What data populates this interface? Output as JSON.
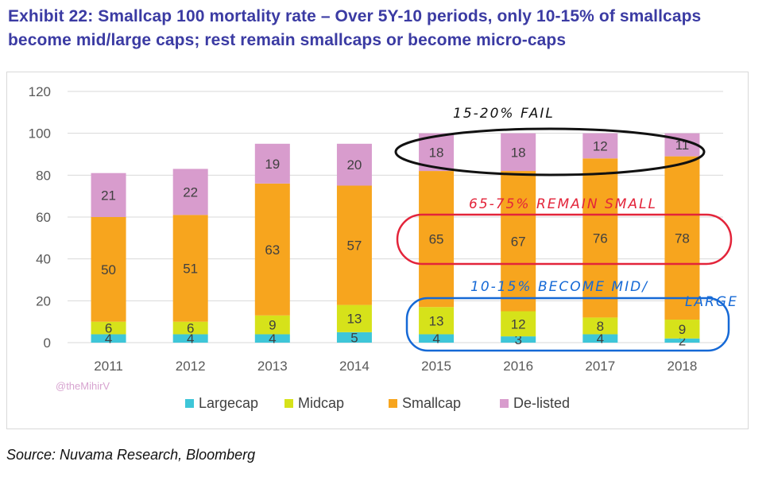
{
  "title": "Exhibit 22: Smallcap 100 mortality rate – Over 5Y-10 periods, only 10-15% of smallcaps become mid/large caps; rest remain smallcaps or become micro-caps",
  "source": "Source: Nuvama Research, Bloomberg",
  "watermark": "@theMihirV",
  "colors": {
    "Largecap": "#3ec6d8",
    "Midcap": "#d6e21a",
    "Smallcap": "#f7a51e",
    "De-listed": "#d89ccd"
  },
  "chart_data": {
    "type": "bar",
    "stacked": true,
    "categories": [
      "2011",
      "2012",
      "2013",
      "2014",
      "2015",
      "2016",
      "2017",
      "2018"
    ],
    "series": [
      {
        "name": "Largecap",
        "values": [
          4,
          4,
          4,
          5,
          4,
          3,
          4,
          2
        ]
      },
      {
        "name": "Midcap",
        "values": [
          6,
          6,
          9,
          13,
          13,
          12,
          8,
          9
        ]
      },
      {
        "name": "Smallcap",
        "values": [
          50,
          51,
          63,
          57,
          65,
          67,
          76,
          78
        ]
      },
      {
        "name": "De-listed",
        "values": [
          21,
          22,
          19,
          20,
          18,
          18,
          12,
          11
        ]
      }
    ],
    "ylim": [
      0,
      120
    ],
    "yticks": [
      "0",
      "20",
      "40",
      "60",
      "80",
      "100",
      "120"
    ],
    "grid": true,
    "legend": "bottom"
  },
  "annotations": {
    "fail": "15-20% FAIL",
    "remain": "65-75% REMAIN SMALL",
    "become_line1": "10-15% BECOME MID/",
    "become_line2": "LARGE"
  }
}
